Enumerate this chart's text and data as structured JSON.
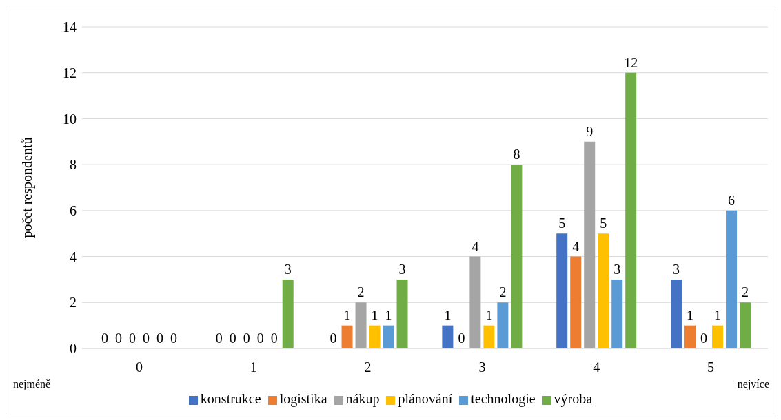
{
  "chart_data": {
    "type": "bar",
    "ylabel": "počet respondentů",
    "categories": [
      "0",
      "1",
      "2",
      "3",
      "4",
      "5"
    ],
    "series": [
      {
        "name": "konstrukce",
        "color": "#4472c4",
        "values": [
          0,
          0,
          0,
          1,
          5,
          3
        ]
      },
      {
        "name": "logistika",
        "color": "#ed7d31",
        "values": [
          0,
          0,
          1,
          0,
          4,
          1
        ]
      },
      {
        "name": "nákup",
        "color": "#a5a5a5",
        "values": [
          0,
          0,
          2,
          4,
          9,
          0
        ]
      },
      {
        "name": "plánování",
        "color": "#ffc000",
        "values": [
          0,
          0,
          1,
          1,
          5,
          1
        ]
      },
      {
        "name": "technologie",
        "color": "#5b9bd5",
        "values": [
          0,
          0,
          1,
          2,
          3,
          6
        ]
      },
      {
        "name": "výroba",
        "color": "#70ad47",
        "values": [
          0,
          3,
          3,
          8,
          12,
          2
        ]
      }
    ],
    "ylim": [
      0,
      14
    ],
    "yticks": [
      0,
      2,
      4,
      6,
      8,
      10,
      12,
      14
    ],
    "grid": "y",
    "legend": "bottom",
    "data_labels": true,
    "annotations": [
      "nejméně",
      "nejvíce"
    ]
  }
}
